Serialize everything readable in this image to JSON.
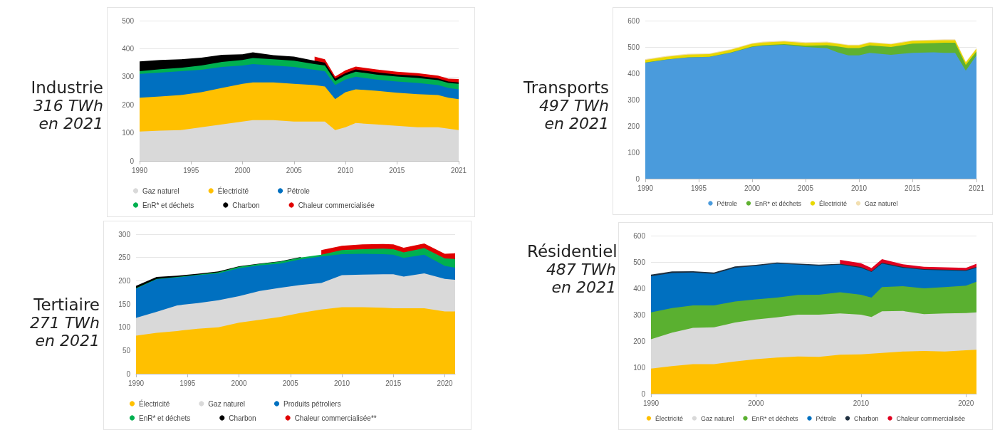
{
  "chart_data": [
    {
      "type": "area",
      "title": "Industrie",
      "subtitle": "316 TWh en 2021",
      "stacked": true,
      "grid": "y",
      "legend": "bottom",
      "x": [
        1990,
        1992,
        1994,
        1996,
        1998,
        2000,
        2001,
        2003,
        2005,
        2007,
        2008,
        2009,
        2010,
        2011,
        2013,
        2015,
        2017,
        2019,
        2020,
        2021
      ],
      "xlim": [
        1990,
        2021
      ],
      "xticks": [
        1990,
        1995,
        2000,
        2005,
        2010,
        2015,
        2021
      ],
      "ylim": [
        0,
        500
      ],
      "yticks": [
        0,
        100,
        200,
        300,
        400,
        500
      ],
      "series": [
        {
          "name": "Gaz naturel",
          "color": "#d9d9d9",
          "values": [
            105,
            108,
            110,
            120,
            130,
            140,
            145,
            145,
            140,
            140,
            140,
            110,
            120,
            135,
            130,
            125,
            120,
            120,
            115,
            110
          ]
        },
        {
          "name": "Électricité",
          "color": "#ffc000",
          "values": [
            120,
            122,
            125,
            125,
            130,
            135,
            135,
            135,
            135,
            130,
            125,
            110,
            125,
            120,
            120,
            118,
            118,
            115,
            110,
            110
          ]
        },
        {
          "name": "Pétrole",
          "color": "#0070c0",
          "values": [
            85,
            85,
            85,
            80,
            75,
            65,
            65,
            60,
            60,
            55,
            55,
            50,
            45,
            45,
            40,
            40,
            40,
            35,
            35,
            35
          ]
        },
        {
          "name": "EnR* et déchets",
          "color": "#00b050",
          "values": [
            10,
            12,
            12,
            15,
            18,
            20,
            22,
            22,
            22,
            20,
            20,
            15,
            15,
            18,
            18,
            18,
            18,
            18,
            18,
            20
          ]
        },
        {
          "name": "Charbon",
          "color": "#000000",
          "values": [
            35,
            33,
            30,
            28,
            25,
            20,
            20,
            15,
            15,
            12,
            10,
            8,
            8,
            8,
            8,
            7,
            7,
            6,
            5,
            5
          ]
        },
        {
          "name": "Chaleur commercialisée",
          "color": "#e00000",
          "values": [
            null,
            null,
            null,
            null,
            null,
            null,
            null,
            null,
            null,
            15,
            12,
            8,
            10,
            10,
            10,
            10,
            10,
            10,
            10,
            12
          ]
        }
      ]
    },
    {
      "type": "area",
      "title": "Transports",
      "subtitle": "497 TWh en 2021",
      "stacked": true,
      "grid": "y",
      "legend": "bottom",
      "x": [
        1990,
        1992,
        1994,
        1996,
        1998,
        2000,
        2001,
        2003,
        2005,
        2007,
        2008,
        2009,
        2010,
        2011,
        2013,
        2015,
        2017,
        2018,
        2019,
        2020,
        2021
      ],
      "xlim": [
        1990,
        2021
      ],
      "xticks": [
        1990,
        1995,
        2000,
        2005,
        2010,
        2015,
        2021
      ],
      "ylim": [
        0,
        600
      ],
      "yticks": [
        0,
        100,
        200,
        300,
        400,
        500,
        600
      ],
      "series": [
        {
          "name": "Pétrole",
          "color": "#4a9bdc",
          "values": [
            440,
            452,
            460,
            462,
            478,
            500,
            505,
            508,
            500,
            495,
            480,
            468,
            468,
            478,
            470,
            478,
            480,
            478,
            478,
            410,
            468
          ]
        },
        {
          "name": "EnR* et déchets",
          "color": "#5fb130",
          "values": [
            1,
            1,
            1,
            1,
            1,
            2,
            2,
            3,
            5,
            12,
            22,
            28,
            28,
            28,
            30,
            35,
            35,
            38,
            38,
            22,
            15
          ]
        },
        {
          "name": "Électricité",
          "color": "#e8d800",
          "values": [
            10,
            10,
            10,
            10,
            10,
            10,
            10,
            10,
            10,
            10,
            10,
            10,
            10,
            10,
            10,
            10,
            10,
            10,
            10,
            9,
            10
          ]
        },
        {
          "name": "Gaz naturel",
          "color": "#f2dfb0",
          "values": [
            3,
            3,
            3,
            3,
            3,
            3,
            3,
            3,
            3,
            3,
            3,
            3,
            3,
            3,
            3,
            3,
            3,
            3,
            3,
            3,
            3
          ]
        }
      ]
    },
    {
      "type": "area",
      "title": "Tertiaire",
      "subtitle": "271 TWh en 2021",
      "stacked": true,
      "grid": "y",
      "legend": "bottom",
      "x": [
        1990,
        1992,
        1994,
        1996,
        1998,
        2000,
        2002,
        2004,
        2006,
        2008,
        2010,
        2012,
        2014,
        2015,
        2016,
        2018,
        2020,
        2021
      ],
      "xlim": [
        1990,
        2021
      ],
      "xticks": [
        1990,
        1995,
        2000,
        2005,
        2010,
        2015,
        2020
      ],
      "ylim": [
        0,
        300
      ],
      "yticks": [
        0,
        50,
        100,
        150,
        200,
        250,
        300
      ],
      "series": [
        {
          "name": "Électricité",
          "color": "#ffc000",
          "values": [
            82,
            88,
            92,
            97,
            100,
            110,
            116,
            122,
            131,
            138,
            143,
            143,
            142,
            141,
            141,
            141,
            134,
            134
          ]
        },
        {
          "name": "Gaz naturel",
          "color": "#d9d9d9",
          "values": [
            38,
            45,
            55,
            55,
            58,
            57,
            62,
            63,
            60,
            57,
            69,
            70,
            72,
            73,
            68,
            75,
            70,
            68
          ]
        },
        {
          "name": "Produits pétroliers",
          "color": "#0070c0",
          "values": [
            63,
            70,
            60,
            60,
            58,
            60,
            55,
            52,
            55,
            57,
            45,
            45,
            43,
            42,
            40,
            40,
            28,
            26
          ]
        },
        {
          "name": "EnR* et déchets",
          "color": "#00b050",
          "values": [
            1,
            1,
            1,
            1,
            2,
            3,
            3,
            4,
            4,
            4,
            9,
            10,
            12,
            12,
            12,
            14,
            16,
            19
          ]
        },
        {
          "name": "Charbon",
          "color": "#000000",
          "values": [
            5,
            4,
            3,
            2,
            2,
            1,
            1,
            1,
            1,
            null,
            null,
            null,
            null,
            null,
            null,
            null,
            null,
            null
          ]
        },
        {
          "name": "Chaleur commercialisée**",
          "color": "#e00000",
          "values": [
            null,
            null,
            null,
            null,
            null,
            null,
            null,
            null,
            null,
            10,
            9,
            10,
            10,
            10,
            10,
            10,
            10,
            12
          ]
        }
      ]
    },
    {
      "type": "area",
      "title": "Résidentiel",
      "subtitle": "487 TWh en 2021",
      "stacked": true,
      "grid": "y",
      "legend": "bottom",
      "x": [
        1990,
        1992,
        1994,
        1996,
        1998,
        2000,
        2002,
        2004,
        2006,
        2008,
        2010,
        2011,
        2012,
        2014,
        2016,
        2018,
        2020,
        2021
      ],
      "xlim": [
        1990,
        2021
      ],
      "xticks": [
        1990,
        2000,
        2010,
        2020
      ],
      "ylim": [
        0,
        600
      ],
      "yticks": [
        0,
        100,
        200,
        300,
        400,
        500,
        600
      ],
      "series": [
        {
          "name": "Électricité",
          "color": "#ffc000",
          "values": [
            95,
            105,
            112,
            112,
            122,
            131,
            137,
            141,
            140,
            148,
            149,
            152,
            155,
            160,
            162,
            160,
            165,
            167
          ]
        },
        {
          "name": "Gaz naturel",
          "color": "#d9d9d9",
          "values": [
            112,
            127,
            138,
            140,
            148,
            151,
            153,
            159,
            160,
            157,
            151,
            139,
            158,
            154,
            140,
            145,
            141,
            142
          ]
        },
        {
          "name": "EnR* et déchets",
          "color": "#5ab030",
          "values": [
            102,
            93,
            85,
            83,
            80,
            76,
            75,
            75,
            76,
            80,
            76,
            74,
            92,
            94,
            98,
            100,
            104,
            116
          ]
        },
        {
          "name": "Pétrole",
          "color": "#0070c0",
          "values": [
            137,
            133,
            125,
            120,
            128,
            127,
            129,
            115,
            110,
            105,
            102,
            97,
            89,
            70,
            70,
            63,
            56,
            53
          ]
        },
        {
          "name": "Charbon",
          "color": "#1f3040",
          "values": [
            6,
            6,
            5,
            5,
            5,
            4,
            4,
            4,
            4,
            3,
            3,
            3,
            3,
            3,
            3,
            3,
            3,
            3
          ]
        },
        {
          "name": "Chaleur commercialisée",
          "color": "#e00020",
          "values": [
            null,
            null,
            null,
            null,
            null,
            null,
            null,
            null,
            null,
            15,
            14,
            12,
            14,
            10,
            9,
            9,
            9,
            12
          ]
        }
      ]
    }
  ]
}
